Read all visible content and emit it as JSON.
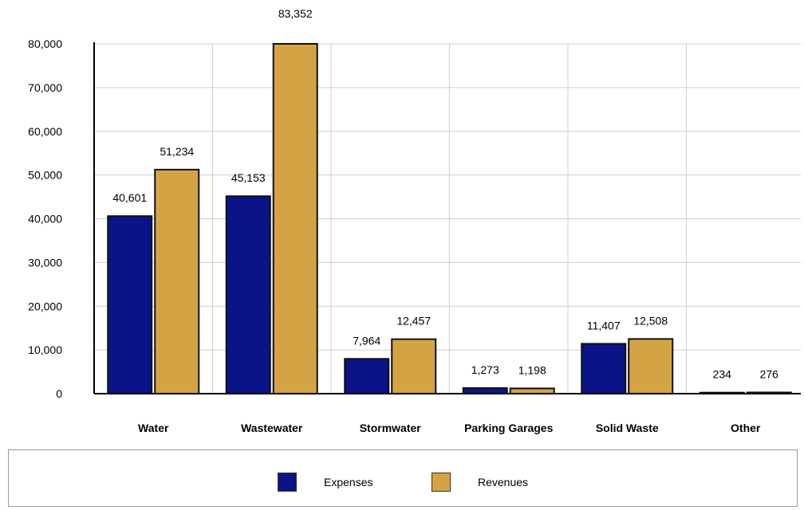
{
  "chart_data": {
    "type": "bar",
    "categories": [
      "Water",
      "Wastewater",
      "Stormwater",
      "Parking Garages",
      "Solid Waste",
      "Other"
    ],
    "series": [
      {
        "name": "Expenses",
        "color": "#0a1488",
        "values": [
          40601,
          45153,
          7964,
          1273,
          11407,
          234
        ],
        "labels": [
          "40,601",
          "45,153",
          "7,964",
          "1,273",
          "11,407",
          "234"
        ]
      },
      {
        "name": "Revenues",
        "color": "#d4a444",
        "values": [
          51234,
          83352,
          12457,
          1198,
          12508,
          276
        ],
        "labels": [
          "51,234",
          "83,352",
          "12,457",
          "1,198",
          "12,508",
          "276"
        ]
      }
    ],
    "ylim": [
      0,
      80000
    ],
    "yticks": [
      0,
      10000,
      20000,
      30000,
      40000,
      50000,
      60000,
      70000,
      80000
    ],
    "ytick_labels": [
      "0",
      "10,000",
      "20,000",
      "30,000",
      "40,000",
      "50,000",
      "60,000",
      "70,000",
      "80,000"
    ],
    "grid": true,
    "legend_position": "bottom"
  }
}
